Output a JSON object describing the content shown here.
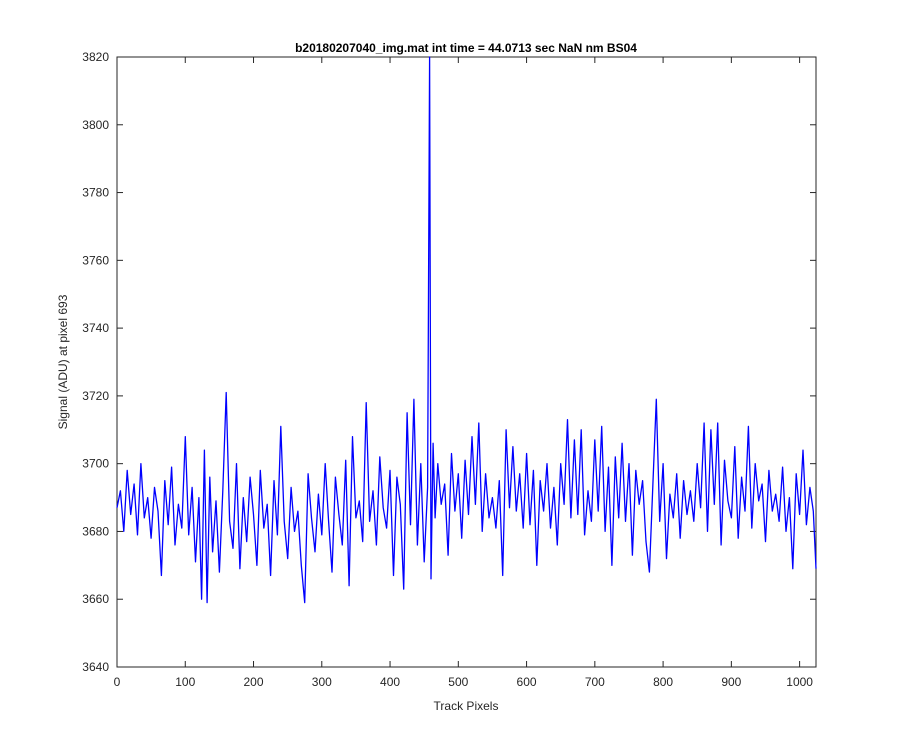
{
  "chart_data": {
    "type": "line",
    "title": "b20180207040_img.mat int time = 44.0713 sec  NaN nm BS04",
    "xlabel": "Track Pixels",
    "ylabel": "Signal (ADU) at pixel 693",
    "xlim": [
      0,
      1024
    ],
    "ylim": [
      3640,
      3820
    ],
    "xticks": [
      0,
      100,
      200,
      300,
      400,
      500,
      600,
      700,
      800,
      900,
      1000
    ],
    "yticks": [
      3640,
      3660,
      3680,
      3700,
      3720,
      3740,
      3760,
      3780,
      3800,
      3820
    ],
    "grid": false,
    "line_color": "#0000ff",
    "series": [
      {
        "values": [
          [
            0,
            3687
          ],
          [
            5,
            3692
          ],
          [
            10,
            3680
          ],
          [
            15,
            3698
          ],
          [
            20,
            3685
          ],
          [
            25,
            3694
          ],
          [
            30,
            3679
          ],
          [
            35,
            3700
          ],
          [
            40,
            3684
          ],
          [
            45,
            3690
          ],
          [
            50,
            3678
          ],
          [
            55,
            3693
          ],
          [
            60,
            3686
          ],
          [
            65,
            3667
          ],
          [
            70,
            3695
          ],
          [
            75,
            3682
          ],
          [
            80,
            3699
          ],
          [
            85,
            3676
          ],
          [
            90,
            3688
          ],
          [
            95,
            3681
          ],
          [
            100,
            3708
          ],
          [
            105,
            3679
          ],
          [
            110,
            3693
          ],
          [
            115,
            3671
          ],
          [
            120,
            3690
          ],
          [
            124,
            3660
          ],
          [
            128,
            3704
          ],
          [
            132,
            3659
          ],
          [
            136,
            3696
          ],
          [
            140,
            3674
          ],
          [
            145,
            3689
          ],
          [
            150,
            3668
          ],
          [
            155,
            3692
          ],
          [
            160,
            3721
          ],
          [
            165,
            3683
          ],
          [
            170,
            3675
          ],
          [
            175,
            3700
          ],
          [
            180,
            3669
          ],
          [
            185,
            3690
          ],
          [
            190,
            3677
          ],
          [
            195,
            3696
          ],
          [
            200,
            3685
          ],
          [
            205,
            3670
          ],
          [
            210,
            3698
          ],
          [
            215,
            3681
          ],
          [
            220,
            3688
          ],
          [
            225,
            3667
          ],
          [
            230,
            3695
          ],
          [
            235,
            3679
          ],
          [
            240,
            3711
          ],
          [
            245,
            3683
          ],
          [
            250,
            3672
          ],
          [
            255,
            3693
          ],
          [
            260,
            3680
          ],
          [
            265,
            3686
          ],
          [
            270,
            3670
          ],
          [
            275,
            3659
          ],
          [
            280,
            3697
          ],
          [
            285,
            3684
          ],
          [
            290,
            3674
          ],
          [
            295,
            3691
          ],
          [
            300,
            3679
          ],
          [
            305,
            3700
          ],
          [
            310,
            3683
          ],
          [
            315,
            3668
          ],
          [
            320,
            3696
          ],
          [
            325,
            3685
          ],
          [
            330,
            3676
          ],
          [
            335,
            3701
          ],
          [
            340,
            3664
          ],
          [
            345,
            3708
          ],
          [
            350,
            3684
          ],
          [
            355,
            3689
          ],
          [
            360,
            3677
          ],
          [
            365,
            3718
          ],
          [
            370,
            3683
          ],
          [
            375,
            3692
          ],
          [
            380,
            3676
          ],
          [
            385,
            3702
          ],
          [
            390,
            3687
          ],
          [
            395,
            3681
          ],
          [
            400,
            3698
          ],
          [
            405,
            3667
          ],
          [
            410,
            3696
          ],
          [
            415,
            3688
          ],
          [
            420,
            3663
          ],
          [
            425,
            3715
          ],
          [
            430,
            3682
          ],
          [
            435,
            3719
          ],
          [
            440,
            3676
          ],
          [
            445,
            3700
          ],
          [
            450,
            3671
          ],
          [
            455,
            3693
          ],
          [
            458,
            3820
          ],
          [
            460,
            3666
          ],
          [
            463,
            3706
          ],
          [
            466,
            3684
          ],
          [
            470,
            3700
          ],
          [
            475,
            3688
          ],
          [
            480,
            3694
          ],
          [
            485,
            3673
          ],
          [
            490,
            3703
          ],
          [
            495,
            3686
          ],
          [
            500,
            3697
          ],
          [
            505,
            3678
          ],
          [
            510,
            3701
          ],
          [
            515,
            3685
          ],
          [
            520,
            3708
          ],
          [
            525,
            3688
          ],
          [
            530,
            3712
          ],
          [
            535,
            3680
          ],
          [
            540,
            3697
          ],
          [
            545,
            3684
          ],
          [
            550,
            3690
          ],
          [
            555,
            3681
          ],
          [
            560,
            3695
          ],
          [
            565,
            3667
          ],
          [
            570,
            3710
          ],
          [
            575,
            3687
          ],
          [
            580,
            3705
          ],
          [
            585,
            3686
          ],
          [
            590,
            3697
          ],
          [
            595,
            3681
          ],
          [
            600,
            3703
          ],
          [
            605,
            3682
          ],
          [
            610,
            3698
          ],
          [
            615,
            3670
          ],
          [
            620,
            3695
          ],
          [
            625,
            3686
          ],
          [
            630,
            3700
          ],
          [
            635,
            3681
          ],
          [
            640,
            3693
          ],
          [
            645,
            3676
          ],
          [
            650,
            3700
          ],
          [
            655,
            3688
          ],
          [
            660,
            3713
          ],
          [
            665,
            3684
          ],
          [
            670,
            3707
          ],
          [
            675,
            3685
          ],
          [
            680,
            3710
          ],
          [
            685,
            3679
          ],
          [
            690,
            3692
          ],
          [
            695,
            3683
          ],
          [
            700,
            3707
          ],
          [
            705,
            3686
          ],
          [
            710,
            3711
          ],
          [
            715,
            3680
          ],
          [
            720,
            3699
          ],
          [
            725,
            3670
          ],
          [
            730,
            3702
          ],
          [
            735,
            3684
          ],
          [
            740,
            3706
          ],
          [
            745,
            3683
          ],
          [
            750,
            3700
          ],
          [
            755,
            3673
          ],
          [
            760,
            3698
          ],
          [
            765,
            3688
          ],
          [
            770,
            3695
          ],
          [
            775,
            3677
          ],
          [
            780,
            3668
          ],
          [
            785,
            3694
          ],
          [
            790,
            3719
          ],
          [
            795,
            3683
          ],
          [
            800,
            3700
          ],
          [
            805,
            3672
          ],
          [
            810,
            3691
          ],
          [
            815,
            3684
          ],
          [
            820,
            3697
          ],
          [
            825,
            3678
          ],
          [
            830,
            3695
          ],
          [
            835,
            3685
          ],
          [
            840,
            3692
          ],
          [
            845,
            3683
          ],
          [
            850,
            3700
          ],
          [
            855,
            3687
          ],
          [
            860,
            3712
          ],
          [
            865,
            3680
          ],
          [
            870,
            3710
          ],
          [
            875,
            3688
          ],
          [
            880,
            3712
          ],
          [
            885,
            3676
          ],
          [
            890,
            3701
          ],
          [
            895,
            3689
          ],
          [
            900,
            3684
          ],
          [
            905,
            3705
          ],
          [
            910,
            3678
          ],
          [
            915,
            3696
          ],
          [
            920,
            3686
          ],
          [
            925,
            3711
          ],
          [
            930,
            3681
          ],
          [
            935,
            3700
          ],
          [
            940,
            3689
          ],
          [
            945,
            3694
          ],
          [
            950,
            3677
          ],
          [
            955,
            3698
          ],
          [
            960,
            3686
          ],
          [
            965,
            3691
          ],
          [
            970,
            3683
          ],
          [
            975,
            3699
          ],
          [
            980,
            3680
          ],
          [
            985,
            3690
          ],
          [
            990,
            3669
          ],
          [
            995,
            3697
          ],
          [
            1000,
            3685
          ],
          [
            1005,
            3704
          ],
          [
            1010,
            3682
          ],
          [
            1015,
            3693
          ],
          [
            1020,
            3686
          ],
          [
            1024,
            3669
          ]
        ]
      }
    ]
  }
}
